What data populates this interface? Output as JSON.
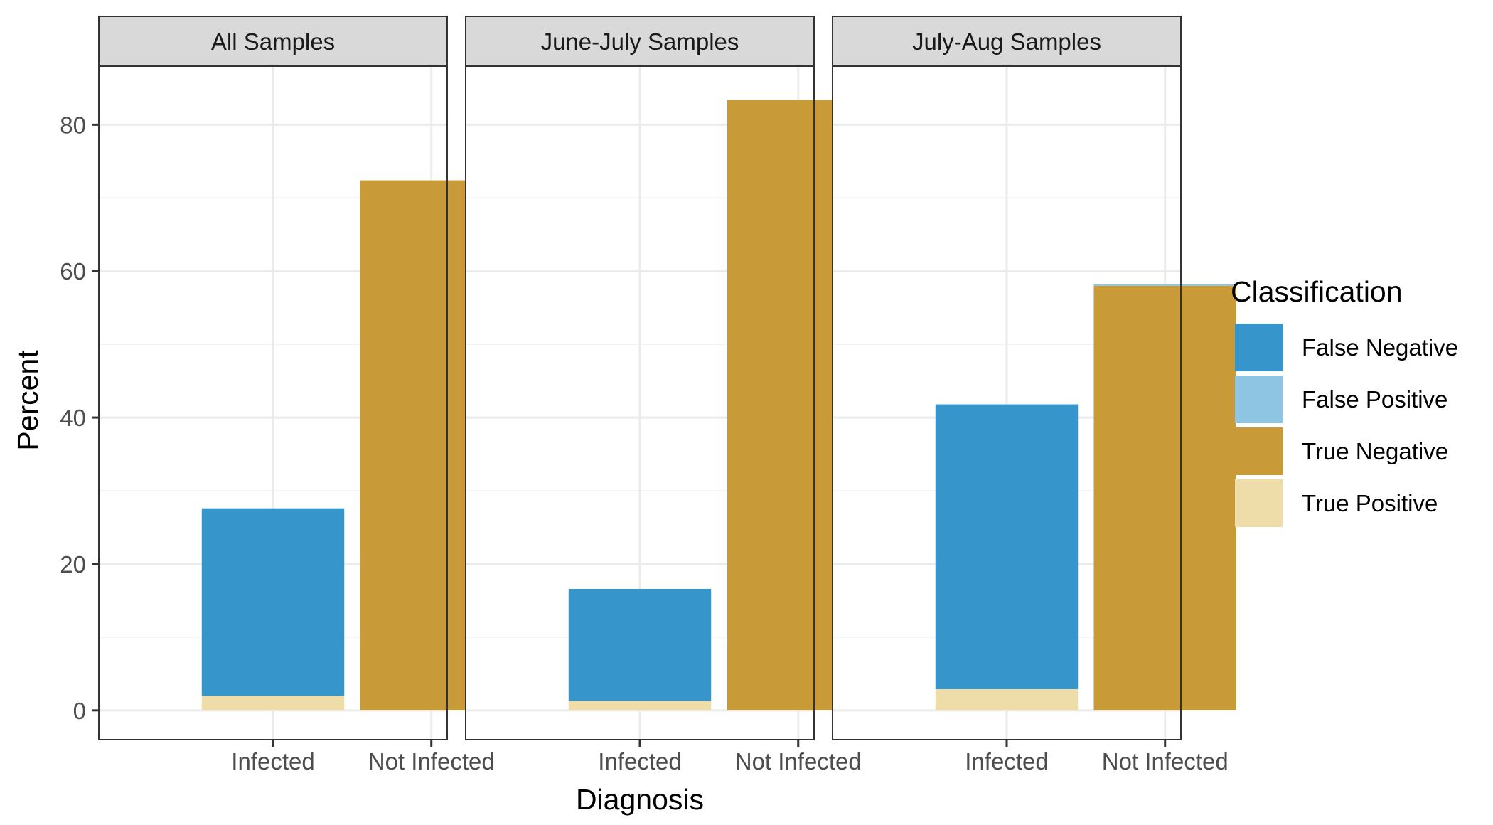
{
  "chart_data": {
    "type": "bar",
    "stacked": true,
    "xlabel": "Diagnosis",
    "ylabel": "Percent",
    "ylim": [
      -4,
      88
    ],
    "yticks": [
      0,
      20,
      40,
      60,
      80
    ],
    "categories": [
      "Infected",
      "Not Infected"
    ],
    "legend": {
      "title": "Classification",
      "position": "right",
      "items": [
        {
          "name": "False Negative",
          "color": "#3696CC"
        },
        {
          "name": "False Positive",
          "color": "#8EC5E3"
        },
        {
          "name": "True Negative",
          "color": "#C99A38"
        },
        {
          "name": "True Positive",
          "color": "#EEDDA8"
        }
      ]
    },
    "panels": [
      {
        "title": "All Samples",
        "series": [
          {
            "name": "True Positive",
            "values": [
              2.0,
              0
            ]
          },
          {
            "name": "False Negative",
            "values": [
              25.6,
              0
            ]
          },
          {
            "name": "True Negative",
            "values": [
              0,
              72.4
            ]
          },
          {
            "name": "False Positive",
            "values": [
              0,
              0
            ]
          }
        ]
      },
      {
        "title": "June-July Samples",
        "series": [
          {
            "name": "True Positive",
            "values": [
              1.3,
              0
            ]
          },
          {
            "name": "False Negative",
            "values": [
              15.3,
              0
            ]
          },
          {
            "name": "True Negative",
            "values": [
              0,
              83.4
            ]
          },
          {
            "name": "False Positive",
            "values": [
              0,
              0
            ]
          }
        ]
      },
      {
        "title": "July-Aug Samples",
        "series": [
          {
            "name": "True Positive",
            "values": [
              2.9,
              0
            ]
          },
          {
            "name": "False Negative",
            "values": [
              38.9,
              0
            ]
          },
          {
            "name": "True Negative",
            "values": [
              0,
              58.0
            ]
          },
          {
            "name": "False Positive",
            "values": [
              0,
              0.2
            ]
          }
        ]
      }
    ]
  }
}
